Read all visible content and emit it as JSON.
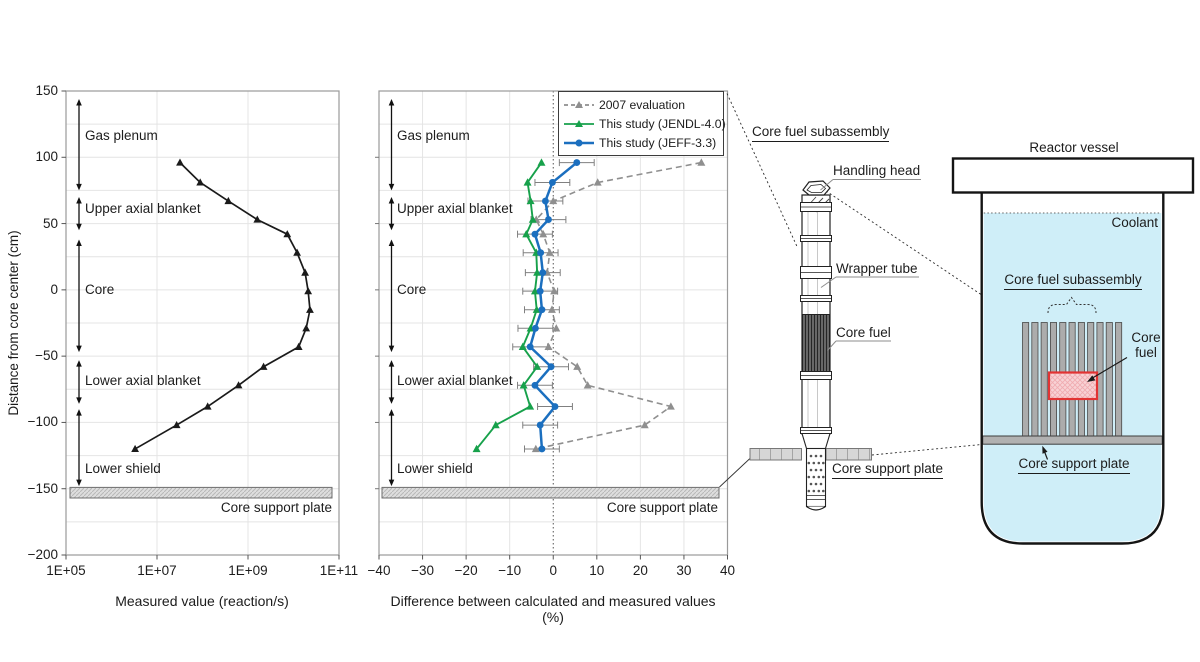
{
  "chart_data": [
    {
      "type": "line",
      "title": "",
      "xlabel": "Measured value (reaction/s)",
      "ylabel": "Distance from core center (cm)",
      "x_scale": "log",
      "xlim": [
        100000.0,
        100000000000.0
      ],
      "ylim": [
        -200,
        150
      ],
      "x_tick_labels": [
        "1E+05",
        "1E+07",
        "1E+09",
        "1E+11"
      ],
      "x_tick_exponents": [
        5,
        7,
        9,
        11
      ],
      "y_ticks": [
        150,
        100,
        50,
        0,
        -50,
        -100,
        -150,
        -200
      ],
      "grid": true,
      "heights_cm": [
        96,
        81,
        67,
        53,
        42,
        28,
        13,
        -1,
        -15,
        -29,
        -43,
        -58,
        -72,
        -88,
        -102,
        -120
      ],
      "series": [
        {
          "name": "Measured axial distribution",
          "color": "#1a1a1a",
          "marker": "triangle",
          "line": "solid",
          "values": [
            32000000.0,
            89000000.0,
            370000000.0,
            1600000000.0,
            7300000000.0,
            12000000000.0,
            18000000000.0,
            21000000000.0,
            23000000000.0,
            19000000000.0,
            13000000000.0,
            2200000000.0,
            620000000.0,
            130000000.0,
            27000000.0,
            3300000.0
          ]
        }
      ],
      "regions": [
        {
          "label": "Gas plenum",
          "from_cm": 75,
          "to_cm": 144,
          "label_cm": 116
        },
        {
          "label": "Upper axial blanket",
          "from_cm": 45,
          "to_cm": 70,
          "label_cm": 61
        },
        {
          "label": "Core",
          "from_cm": -47,
          "to_cm": 38,
          "label_cm": 0
        },
        {
          "label": "Lower axial blanket",
          "from_cm": -86,
          "to_cm": -53,
          "label_cm": -69
        },
        {
          "label": "Lower shield",
          "from_cm": -148,
          "to_cm": -90,
          "label_cm": -135
        }
      ],
      "core_support_plate": {
        "label": "Core support plate",
        "from_cm": -149,
        "to_cm": -157
      }
    },
    {
      "type": "line",
      "title": "",
      "xlabel": "Difference between calculated and measured values (%)",
      "ylabel": "",
      "xlim": [
        -40,
        40
      ],
      "ylim": [
        -200,
        150
      ],
      "x_ticks": [
        -40,
        -30,
        -20,
        -10,
        0,
        10,
        20,
        30,
        40
      ],
      "grid": true,
      "zero_line": true,
      "legend_position": "top-right",
      "heights_cm": [
        96,
        81,
        67,
        53,
        42,
        28,
        13,
        -1,
        -15,
        -29,
        -43,
        -58,
        -72,
        -88,
        -102,
        -120
      ],
      "series": [
        {
          "name": "2007 evaluation",
          "color": "#8f8f8f",
          "marker": "triangle",
          "line": "dashed",
          "values": [
            34,
            10.2,
            0,
            -3.9,
            -2.3,
            -0.8,
            -1.4,
            0.2,
            -0.3,
            0.7,
            -1.1,
            5.5,
            7.9,
            27,
            21,
            -4
          ]
        },
        {
          "name": "This study (JENDL-4.0)",
          "color": "#17a14b",
          "marker": "triangle",
          "line": "solid",
          "values": [
            -2.7,
            -5.9,
            -5.2,
            -4.7,
            -6.2,
            -3.9,
            -3.7,
            -4.2,
            -3.8,
            -5.2,
            -7.0,
            -3.7,
            -6.8,
            -5.3,
            -13.2,
            -17.6
          ]
        },
        {
          "name": "This study (JEFF-3.3)",
          "color": "#1b6fbf",
          "marker": "circle",
          "line": "solid",
          "error_bar_pct": 4,
          "values": [
            5.4,
            -0.2,
            -1.8,
            -1.1,
            -4.2,
            -2.9,
            -2.4,
            -3.0,
            -2.6,
            -4.1,
            -5.3,
            -0.5,
            -4.2,
            0.4,
            -3.0,
            -2.6
          ]
        }
      ],
      "regions": [
        {
          "label": "Gas plenum",
          "from_cm": 75,
          "to_cm": 144,
          "label_cm": 116
        },
        {
          "label": "Upper axial blanket",
          "from_cm": 45,
          "to_cm": 70,
          "label_cm": 61
        },
        {
          "label": "Core",
          "from_cm": -47,
          "to_cm": 38,
          "label_cm": 0
        },
        {
          "label": "Lower axial blanket",
          "from_cm": -86,
          "to_cm": -53,
          "label_cm": -69
        },
        {
          "label": "Lower shield",
          "from_cm": -148,
          "to_cm": -90,
          "label_cm": -135
        }
      ],
      "core_support_plate": {
        "label": "Core support plate",
        "from_cm": -149,
        "to_cm": -157
      }
    }
  ],
  "subassembly_diagram": {
    "title": "Core fuel subassembly",
    "parts": [
      {
        "label": "Handling head"
      },
      {
        "label": "Wrapper tube"
      },
      {
        "label": "Core fuel"
      },
      {
        "label": "Core support plate"
      }
    ]
  },
  "vessel_diagram": {
    "title": "Reactor vessel",
    "coolant_label": "Coolant",
    "subassembly_label": "Core fuel subassembly",
    "core_fuel_label_line1": "Core",
    "core_fuel_label_line2": "fuel",
    "core_support_plate_label": "Core support plate",
    "colors": {
      "coolant": "#cfeef8",
      "core_fuel_border": "#e23333",
      "core_fuel_fill": "#f8d2d5",
      "subassembly_bar": "#acacac",
      "support_plate": "#b1b1b1"
    }
  }
}
